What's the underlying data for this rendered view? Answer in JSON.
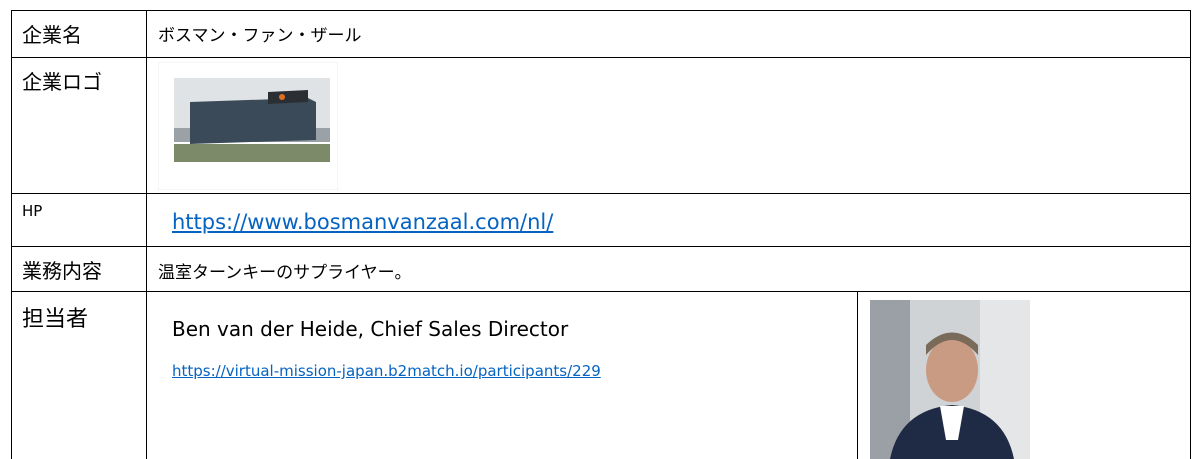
{
  "table": {
    "rows": [
      [
        "企業名",
        "ボスマン・ファン・ザール"
      ],
      [
        "企業ロゴ"
      ],
      [
        "HP",
        "https://www.bosmanvanzaal.com/nl/"
      ],
      [
        "業務内容",
        "温室ターンキーのサプライヤー。"
      ],
      [
        "担当者",
        "Ben van der Heide, Chief Sales Director",
        "https://virtual-mission-japan.b2match.io/participants/229"
      ]
    ]
  }
}
